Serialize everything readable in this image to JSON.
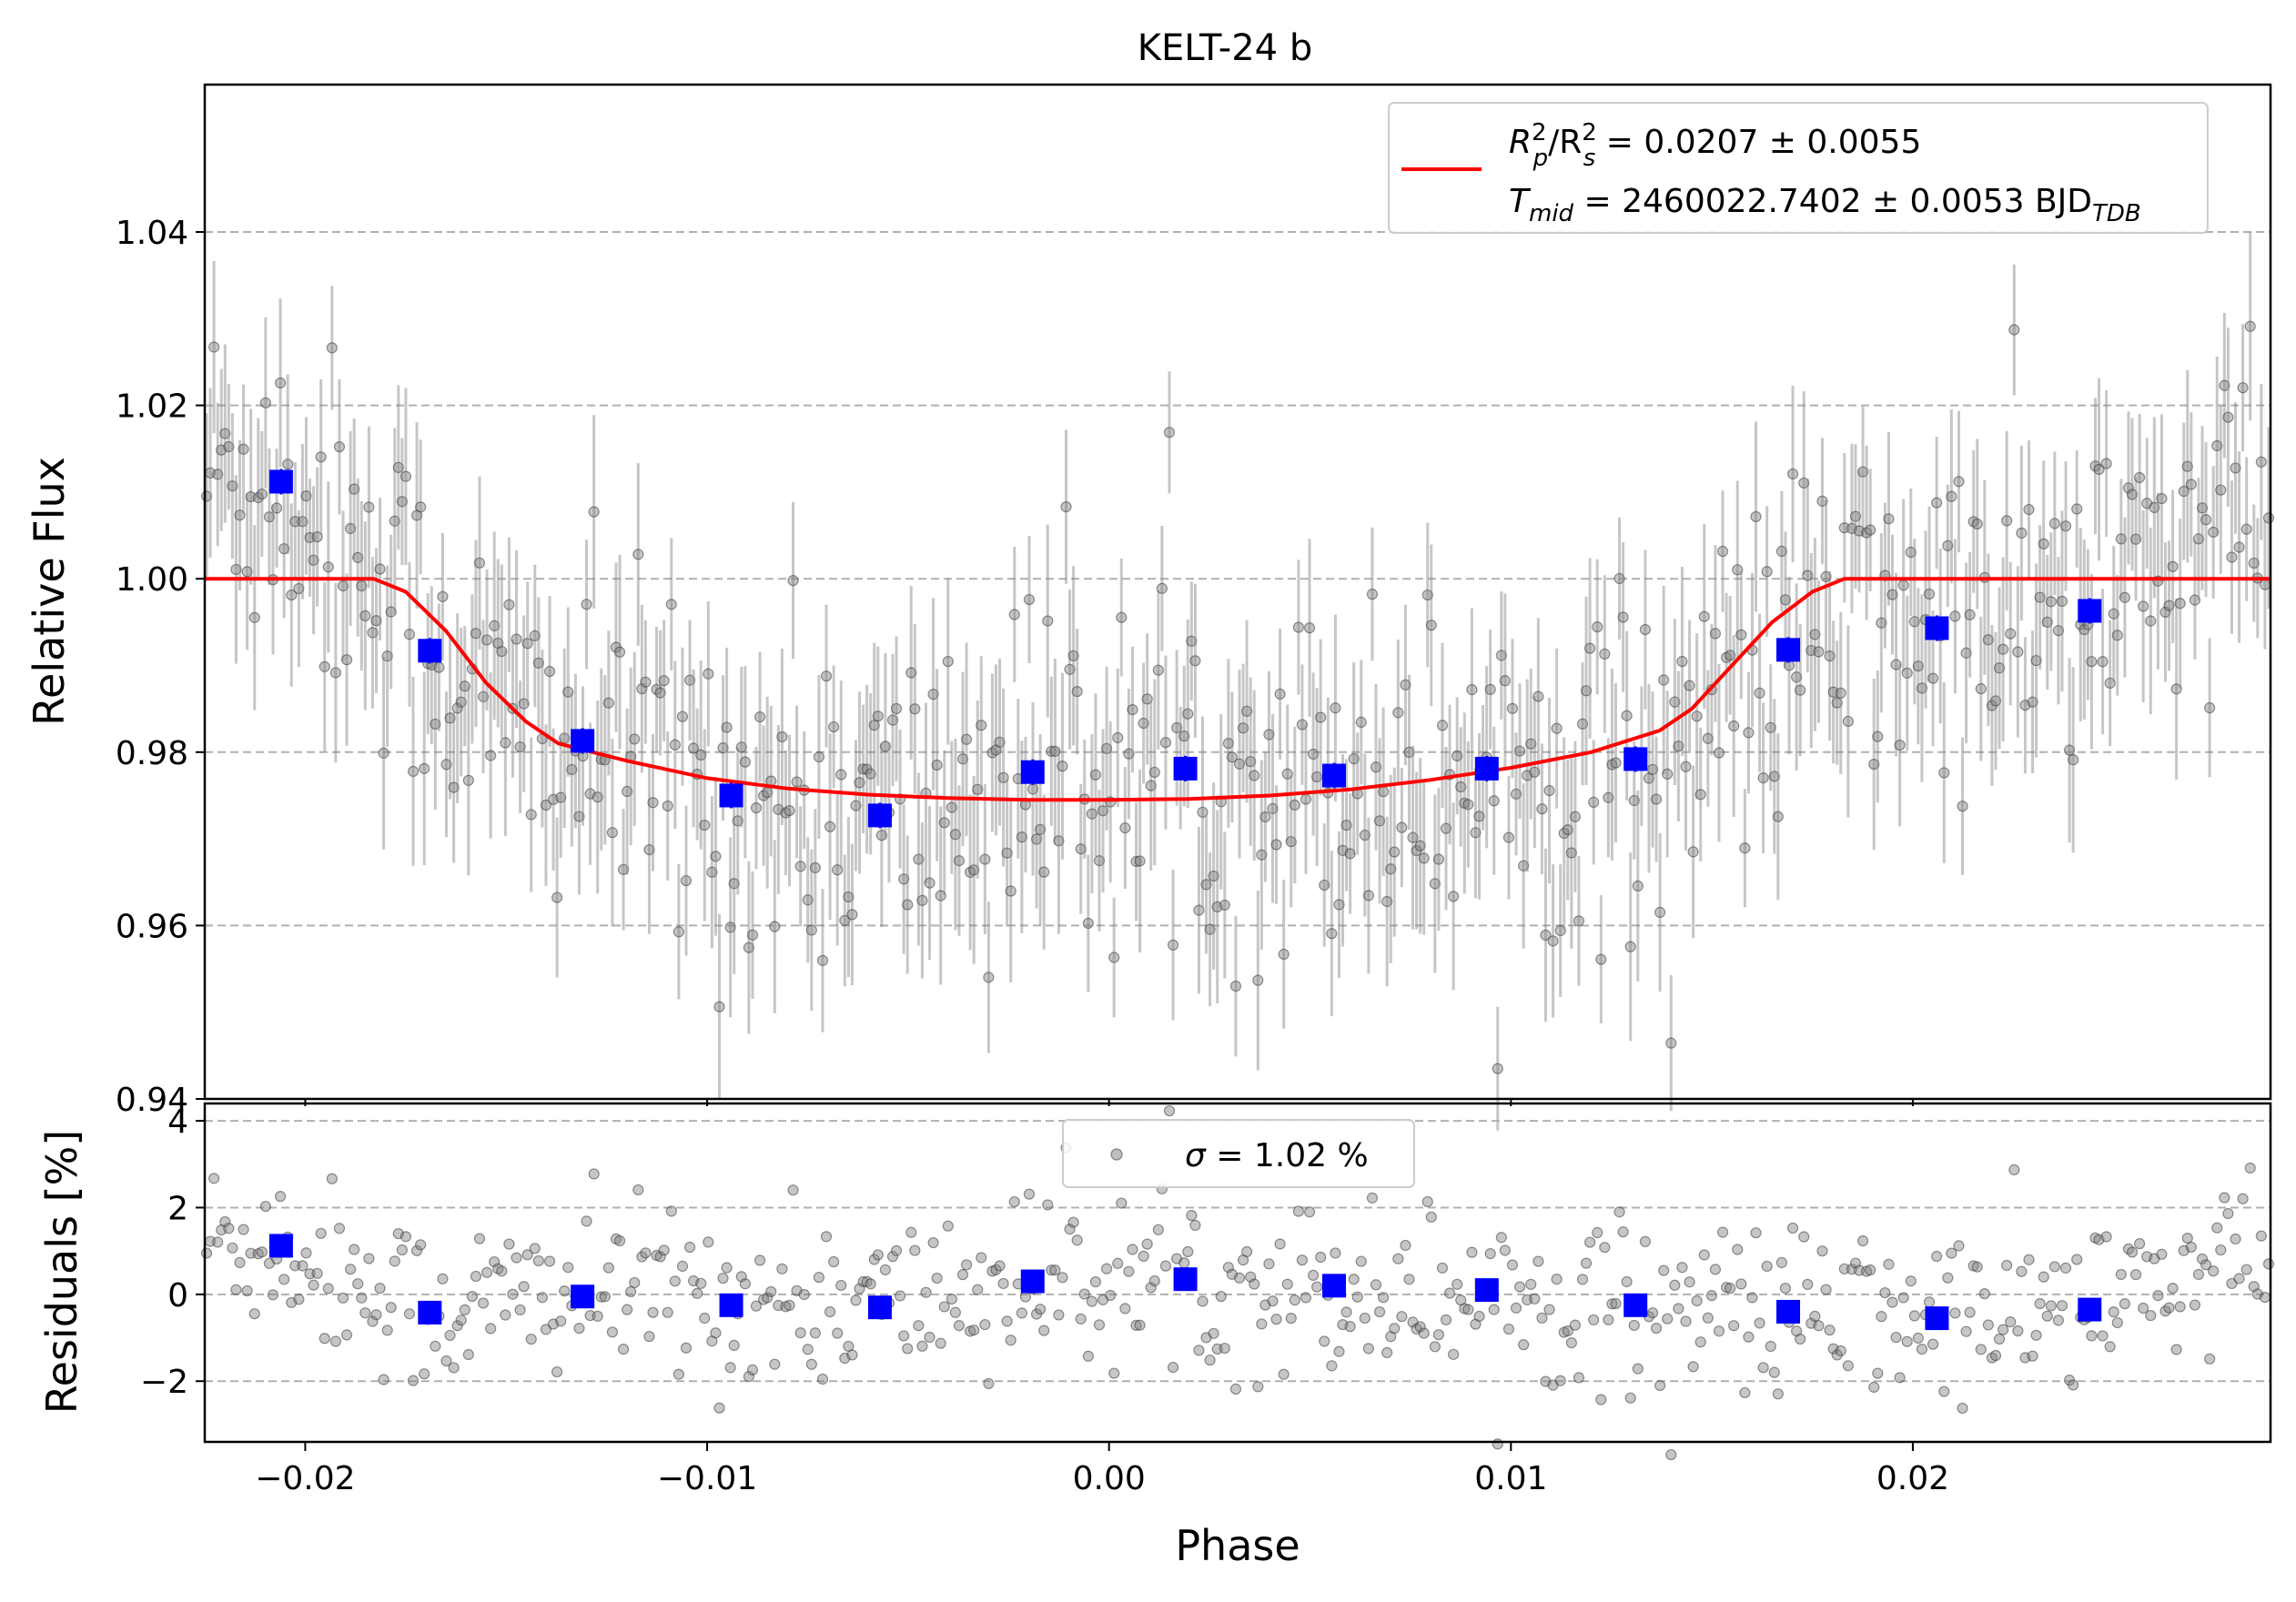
{
  "chart_data": [
    {
      "panel": "top",
      "type": "scatter",
      "title": "KELT-24 b",
      "xlabel": "",
      "ylabel": "Relative Flux",
      "xlim": [
        -0.0225,
        0.0289
      ],
      "ylim": [
        0.94,
        1.057
      ],
      "x_ticks": [
        -0.02,
        -0.01,
        0.0,
        0.01,
        0.02
      ],
      "y_ticks": [
        0.94,
        0.96,
        0.98,
        1.0,
        1.02,
        1.04
      ],
      "y_tick_labels": [
        "0.94",
        "0.96",
        "0.98",
        "1.00",
        "1.02",
        "1.04"
      ],
      "grid": "horizontal dashed",
      "legend_placement": "top-right",
      "legend": {
        "line1": {
          "base": "R",
          "sub1": "p",
          "sup1": "2",
          "mid": "/R",
          "sub2": "s",
          "sup2": "2",
          "value": " = 0.0207 ± 0.0055"
        },
        "line2": {
          "base": "T",
          "sub": "mid",
          "value": " = 2460022.7402 ± 0.0053 BJD",
          "unit_sub": "TDB"
        }
      },
      "model": {
        "name": "transit model",
        "color": "#ff0000",
        "x": [
          -0.0225,
          -0.0183,
          -0.0175,
          -0.0165,
          -0.0155,
          -0.0145,
          -0.0137,
          -0.012,
          -0.01,
          -0.008,
          -0.006,
          -0.004,
          -0.002,
          0.0,
          0.002,
          0.004,
          0.006,
          0.008,
          0.01,
          0.012,
          0.0137,
          0.0145,
          0.0155,
          0.0165,
          0.0175,
          0.0183,
          0.0289
        ],
        "y": [
          1.0,
          1.0,
          0.9985,
          0.994,
          0.988,
          0.9835,
          0.981,
          0.979,
          0.977,
          0.9758,
          0.9751,
          0.9747,
          0.9745,
          0.9745,
          0.9746,
          0.975,
          0.9757,
          0.9768,
          0.9782,
          0.98,
          0.9825,
          0.985,
          0.99,
          0.995,
          0.9985,
          1.0,
          1.0
        ]
      },
      "binned": {
        "color": "#0000ff",
        "x": [
          -0.0206,
          -0.0169,
          -0.0131,
          -0.0094,
          -0.0057,
          -0.0019,
          0.0019,
          0.0056,
          0.0094,
          0.0131,
          0.0169,
          0.0206,
          0.0244
        ],
        "y": [
          1.0112,
          0.9917,
          0.9813,
          0.975,
          0.9727,
          0.9777,
          0.9781,
          0.9773,
          0.9781,
          0.9792,
          0.9918,
          0.9943,
          0.9963
        ]
      },
      "raw_points": {
        "color": "#808080",
        "count": 560,
        "typical_error": 0.009,
        "scatter": 0.0102
      }
    },
    {
      "panel": "bottom",
      "type": "scatter",
      "xlabel": "Phase",
      "ylabel": "Residuals [%]",
      "xlim": [
        -0.0225,
        0.0289
      ],
      "ylim": [
        -3.4,
        4.4
      ],
      "x_ticks": [
        -0.02,
        -0.01,
        0.0,
        0.01,
        0.02
      ],
      "x_tick_labels": [
        "−0.02",
        "−0.01",
        "0.00",
        "0.01",
        "0.02"
      ],
      "y_ticks": [
        -2,
        0,
        2,
        4
      ],
      "y_tick_labels": [
        "−2",
        "0",
        "2",
        "4"
      ],
      "grid": "horizontal dashed",
      "legend_placement": "top-center",
      "legend": {
        "symbol": "σ",
        "value": " = 1.02 %"
      },
      "binned": {
        "color": "#0000ff",
        "x": [
          -0.0206,
          -0.0169,
          -0.0131,
          -0.0094,
          -0.0057,
          -0.0019,
          0.0019,
          0.0056,
          0.0094,
          0.0131,
          0.0169,
          0.0206,
          0.0244
        ],
        "y": [
          1.12,
          -0.42,
          -0.05,
          -0.25,
          -0.3,
          0.3,
          0.35,
          0.2,
          0.1,
          -0.25,
          -0.4,
          -0.55,
          -0.35
        ]
      },
      "raw_points": {
        "color": "#808080",
        "count": 560,
        "scatter": 1.02
      }
    }
  ]
}
